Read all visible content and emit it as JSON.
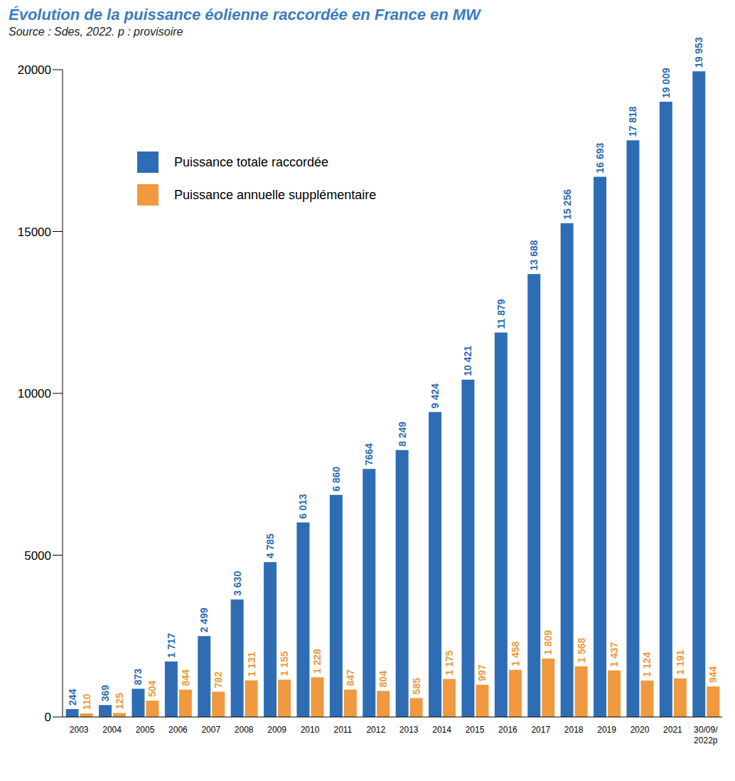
{
  "chart_data": {
    "type": "bar",
    "title": "Évolution de la puissance éolienne raccordée en France en MW",
    "subtitle": "Source : Sdes, 2022. p : provisoire",
    "categories": [
      "2003",
      "2004",
      "2005",
      "2006",
      "2007",
      "2008",
      "2009",
      "2010",
      "2011",
      "2012",
      "2013",
      "2014",
      "2015",
      "2016",
      "2017",
      "2018",
      "2019",
      "2020",
      "2021",
      "30/09/2022p"
    ],
    "series": [
      {
        "name": "Puissance totale raccordée",
        "color": "#2e6db4",
        "values": [
          244,
          369,
          873,
          1717,
          2499,
          3630,
          4785,
          6013,
          6860,
          7664,
          8249,
          9424,
          10421,
          11879,
          13688,
          15256,
          16693,
          17818,
          19009,
          19953
        ],
        "value_labels": [
          "244",
          "369",
          "873",
          "1 717",
          "2 499",
          "3 630",
          "4 785",
          "6 013",
          "6 860",
          "7664",
          "8 249",
          "9 424",
          "10 421",
          "11 879",
          "13 688",
          "15 256",
          "16 693",
          "17 818",
          "19 009",
          "19 953"
        ]
      },
      {
        "name": "Puissance annuelle supplémentaire",
        "color": "#f0993e",
        "values": [
          110,
          125,
          504,
          844,
          782,
          1131,
          1155,
          1228,
          847,
          804,
          585,
          1175,
          997,
          1458,
          1809,
          1568,
          1437,
          1124,
          1191,
          944
        ],
        "value_labels": [
          "110",
          "125",
          "504",
          "844",
          "782",
          "1 131",
          "1 155",
          "1 228",
          "847",
          "804",
          "585",
          "1 175",
          "997",
          "1 458",
          "1 809",
          "1 568",
          "1 437",
          "1 124",
          "1 191",
          "944"
        ]
      }
    ],
    "ylim": [
      0,
      20000
    ],
    "yticks": [
      0,
      5000,
      10000,
      15000,
      20000
    ],
    "grid": false,
    "legend": "upper left",
    "data_labels": true
  }
}
